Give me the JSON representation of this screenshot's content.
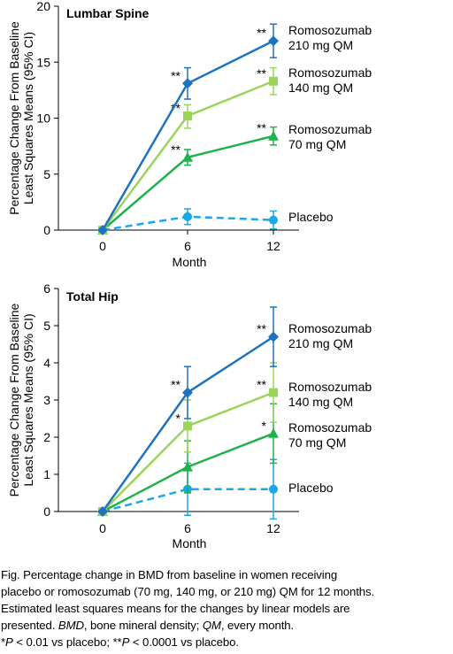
{
  "colors": {
    "romo210": "#1e73be",
    "romo140": "#9bd45a",
    "romo70": "#1fb24a",
    "placebo": "#1aa8e6"
  },
  "chart_data": [
    {
      "type": "line",
      "title": "Lumbar Spine",
      "xlabel": "Month",
      "ylabel": [
        "Percentage Change From Baseline",
        "Least Squares Means (95% CI)"
      ],
      "x": [
        0,
        6,
        12
      ],
      "xticks": [
        "0",
        "6",
        "12"
      ],
      "ylim": [
        0,
        20
      ],
      "yticks": [
        "0",
        "5",
        "10",
        "15",
        "20"
      ],
      "grid": false,
      "series": [
        {
          "name": [
            "Romosozumab",
            "210 mg QM"
          ],
          "marker": "diamond",
          "style": "solid",
          "color": "#1e73be",
          "values": [
            0,
            13.1,
            16.9
          ],
          "ci_low": [
            0,
            11.7,
            15.4
          ],
          "ci_high": [
            0,
            14.5,
            18.4
          ],
          "sig": [
            "",
            "**",
            "**"
          ]
        },
        {
          "name": [
            "Romosozumab",
            "140 mg QM"
          ],
          "marker": "square",
          "style": "solid",
          "color": "#9bd45a",
          "values": [
            0,
            10.2,
            13.3
          ],
          "ci_low": [
            0,
            9.1,
            12.1
          ],
          "ci_high": [
            0,
            11.2,
            14.5
          ],
          "sig": [
            "",
            "**",
            "**"
          ]
        },
        {
          "name": [
            "Romosozumab",
            "70 mg QM"
          ],
          "marker": "triangle",
          "style": "solid",
          "color": "#1fb24a",
          "values": [
            0,
            6.5,
            8.4
          ],
          "ci_low": [
            0,
            5.8,
            7.6
          ],
          "ci_high": [
            0,
            7.2,
            9.2
          ],
          "sig": [
            "",
            "**",
            "**"
          ]
        },
        {
          "name": [
            "Placebo"
          ],
          "marker": "circle",
          "style": "dashed",
          "color": "#1aa8e6",
          "values": [
            0,
            1.2,
            0.9
          ],
          "ci_low": [
            0,
            0.5,
            0.1
          ],
          "ci_high": [
            0,
            1.9,
            1.7
          ],
          "sig": [
            "",
            "",
            ""
          ]
        }
      ]
    },
    {
      "type": "line",
      "title": "Total Hip",
      "xlabel": "Month",
      "ylabel": [
        "Percentage Change From Baseline",
        "Least Squares Means (95% CI)"
      ],
      "x": [
        0,
        6,
        12
      ],
      "xticks": [
        "0",
        "6",
        "12"
      ],
      "ylim": [
        0,
        6
      ],
      "yticks": [
        "0",
        "1",
        "2",
        "3",
        "4",
        "5",
        "6"
      ],
      "grid": false,
      "series": [
        {
          "name": [
            "Romosozumab",
            "210 mg QM"
          ],
          "marker": "diamond",
          "style": "solid",
          "color": "#1e73be",
          "values": [
            0,
            3.2,
            4.7
          ],
          "ci_low": [
            0,
            2.5,
            3.9
          ],
          "ci_high": [
            0,
            3.9,
            5.5
          ],
          "sig": [
            "",
            "**",
            "**"
          ]
        },
        {
          "name": [
            "Romosozumab",
            "140 mg QM"
          ],
          "marker": "square",
          "style": "solid",
          "color": "#9bd45a",
          "values": [
            0,
            2.3,
            3.2
          ],
          "ci_low": [
            0,
            1.6,
            2.4
          ],
          "ci_high": [
            0,
            3.0,
            4.0
          ],
          "sig": [
            "",
            "*",
            "**"
          ]
        },
        {
          "name": [
            "Romosozumab",
            "70 mg QM"
          ],
          "marker": "triangle",
          "style": "solid",
          "color": "#1fb24a",
          "values": [
            0,
            1.2,
            2.1
          ],
          "ci_low": [
            0,
            0.5,
            1.3
          ],
          "ci_high": [
            0,
            1.9,
            2.9
          ],
          "sig": [
            "",
            "",
            "*"
          ]
        },
        {
          "name": [
            "Placebo"
          ],
          "marker": "circle",
          "style": "dashed",
          "color": "#1aa8e6",
          "values": [
            0,
            0.6,
            0.6
          ],
          "ci_low": [
            0,
            -0.1,
            -0.2
          ],
          "ci_high": [
            0,
            1.3,
            1.4
          ],
          "sig": [
            "",
            "",
            ""
          ]
        }
      ]
    }
  ],
  "caption": {
    "line1": "Fig. Percentage change in BMD from baseline in women receiving",
    "line2": "placebo or romosozumab (70 mg, 140 mg, or 210 mg) QM for 12 months.",
    "line3": "Estimated least squares means for the changes by linear models are",
    "line4_abbr1": "BMD",
    "line4_text1": ", bone mineral density; ",
    "line4_abbr2": "QM",
    "line4_text2": ", every month.",
    "line3_tail": "presented. ",
    "line5_star1": "*",
    "line5_p1": "P",
    "line5_text1": " < 0.01 vs placebo; **",
    "line5_p2": "P",
    "line5_text2": " < 0.0001 vs placebo."
  }
}
